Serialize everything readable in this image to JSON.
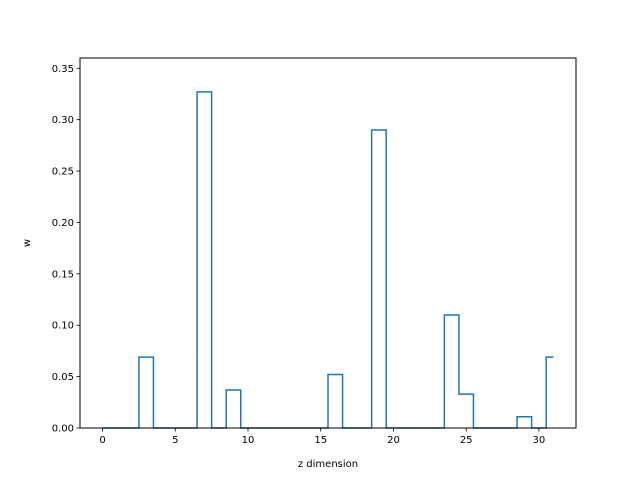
{
  "chart_data": {
    "type": "line",
    "drawstyle": "steps-mid",
    "xlabel": "z dimension",
    "ylabel": "w",
    "xlim": [
      -1.55,
      32.55
    ],
    "ylim": [
      0,
      0.36
    ],
    "xticks": [
      0,
      5,
      10,
      15,
      20,
      25,
      30
    ],
    "yticks": [
      0.0,
      0.05,
      0.1,
      0.15,
      0.2,
      0.25,
      0.3,
      0.35
    ],
    "ytick_labels": [
      "0.00",
      "0.05",
      "0.10",
      "0.15",
      "0.20",
      "0.25",
      "0.30",
      "0.35"
    ],
    "grid": false,
    "line_color": "#1f77b4",
    "series": [
      {
        "x": [
          0,
          1,
          2,
          3,
          4,
          5,
          6,
          7,
          8,
          9,
          10,
          11,
          12,
          13,
          14,
          15,
          16,
          17,
          18,
          19,
          20,
          21,
          22,
          23,
          24,
          25,
          26,
          27,
          28,
          29,
          30,
          31
        ],
        "values": [
          0,
          0,
          0,
          0.069,
          0,
          0,
          0,
          0.327,
          0,
          0.037,
          0,
          0,
          0,
          0,
          0,
          0,
          0.052,
          0,
          0,
          0.29,
          0,
          0,
          0,
          0,
          0.11,
          0.033,
          0,
          0,
          0,
          0.011,
          0,
          0.069
        ]
      }
    ]
  }
}
